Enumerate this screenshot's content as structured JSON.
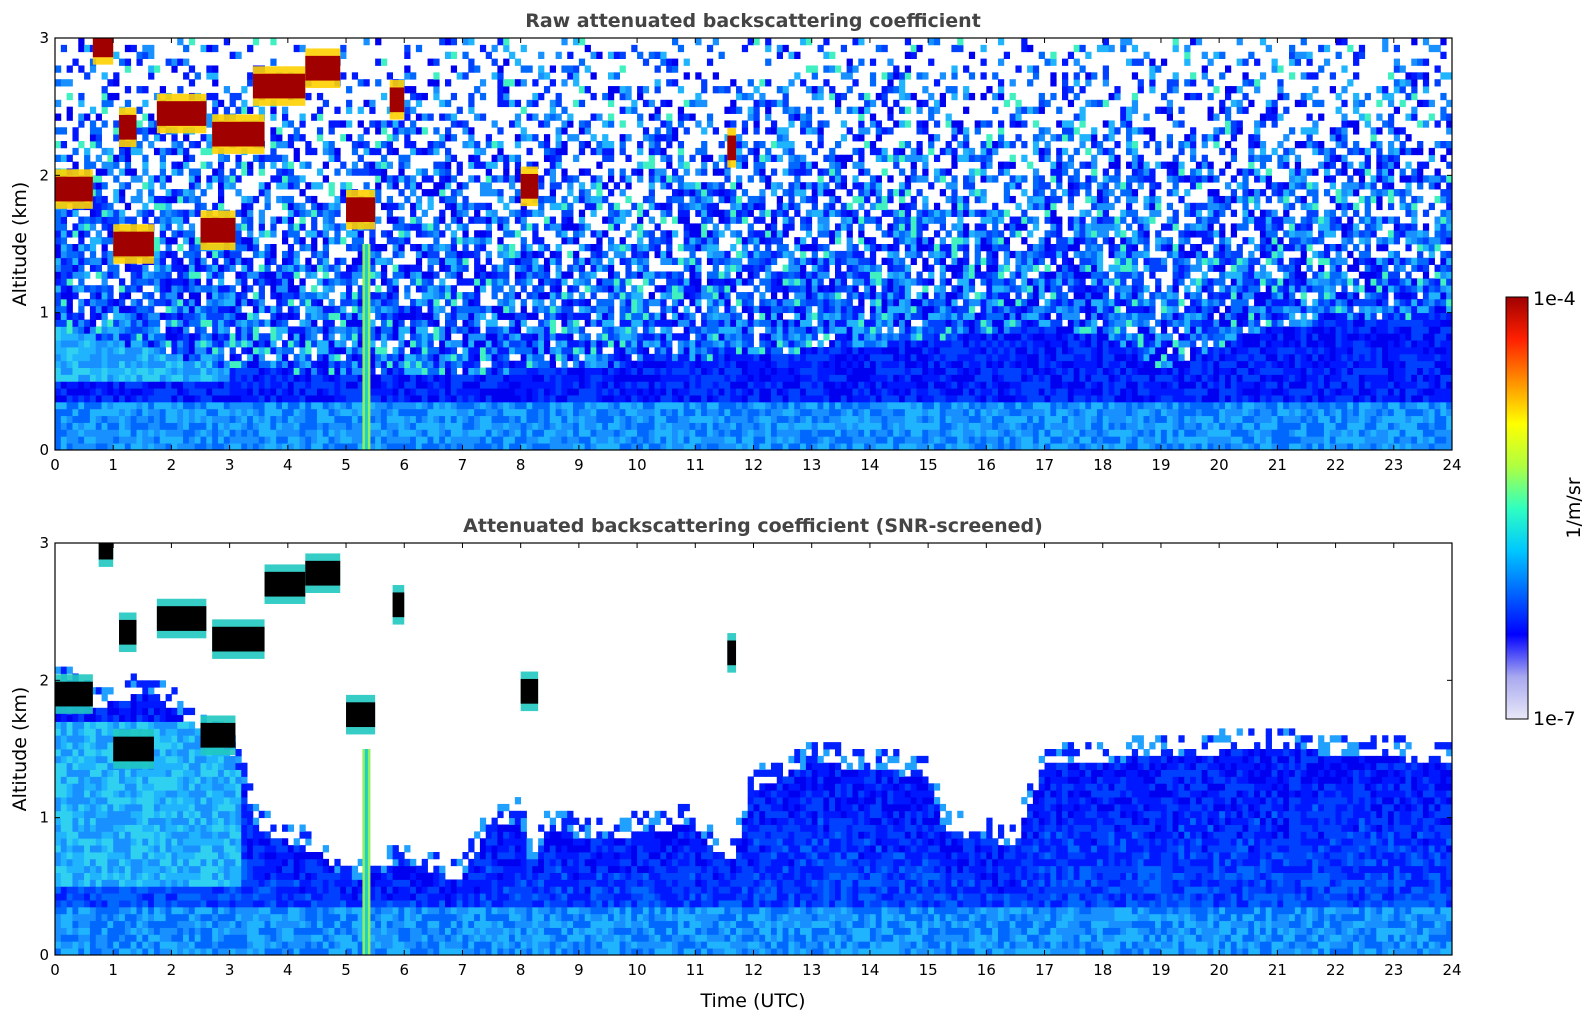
{
  "chart_data": [
    {
      "type": "heatmap",
      "title": "Raw attenuated backscattering coefficient",
      "xlabel": "",
      "ylabel": "Altitude (km)",
      "xlim": [
        0,
        24
      ],
      "ylim": [
        0,
        3
      ],
      "x_ticks": [
        "0",
        "1",
        "2",
        "3",
        "4",
        "5",
        "6",
        "7",
        "8",
        "9",
        "10",
        "11",
        "12",
        "13",
        "14",
        "15",
        "16",
        "17",
        "18",
        "19",
        "20",
        "21",
        "22",
        "23",
        "24"
      ],
      "y_ticks": [
        "0",
        "1",
        "2",
        "3"
      ],
      "screened": false,
      "boundary_layer_top_km": [
        [
          0,
          0.9
        ],
        [
          1.5,
          0.75
        ],
        [
          3,
          0.6
        ],
        [
          5,
          0.55
        ],
        [
          7,
          0.55
        ],
        [
          9,
          0.6
        ],
        [
          12,
          0.7
        ],
        [
          15,
          0.8
        ],
        [
          17,
          0.9
        ],
        [
          18,
          0.85
        ],
        [
          19,
          0.6
        ],
        [
          21,
          0.9
        ],
        [
          24,
          1.0
        ]
      ],
      "cloud_layers": [
        {
          "t_start": 0.0,
          "t_end": 0.65,
          "alt_km": 1.9
        },
        {
          "t_start": 0.65,
          "t_end": 1.0,
          "alt_km": 2.95
        },
        {
          "t_start": 1.1,
          "t_end": 1.4,
          "alt_km": 2.35
        },
        {
          "t_start": 1.0,
          "t_end": 1.7,
          "alt_km": 1.5
        },
        {
          "t_start": 1.75,
          "t_end": 2.6,
          "alt_km": 2.45
        },
        {
          "t_start": 2.5,
          "t_end": 3.1,
          "alt_km": 1.6
        },
        {
          "t_start": 2.7,
          "t_end": 3.6,
          "alt_km": 2.3
        },
        {
          "t_start": 3.4,
          "t_end": 4.3,
          "alt_km": 2.65
        },
        {
          "t_start": 4.3,
          "t_end": 4.9,
          "alt_km": 2.78
        },
        {
          "t_start": 5.0,
          "t_end": 5.5,
          "alt_km": 1.75
        },
        {
          "t_start": 5.75,
          "t_end": 6.0,
          "alt_km": 2.55
        },
        {
          "t_start": 8.0,
          "t_end": 8.3,
          "alt_km": 1.92
        },
        {
          "t_start": 11.55,
          "t_end": 11.7,
          "alt_km": 2.2
        }
      ],
      "precip_columns": [
        {
          "t": 5.35,
          "top_km": 1.5
        }
      ]
    },
    {
      "type": "heatmap",
      "title": "Attenuated backscattering coefficient (SNR-screened)",
      "xlabel": "Time (UTC)",
      "ylabel": "Altitude (km)",
      "xlim": [
        0,
        24
      ],
      "ylim": [
        0,
        3
      ],
      "x_ticks": [
        "0",
        "1",
        "2",
        "3",
        "4",
        "5",
        "6",
        "7",
        "8",
        "9",
        "10",
        "11",
        "12",
        "13",
        "14",
        "15",
        "16",
        "17",
        "18",
        "19",
        "20",
        "21",
        "22",
        "23",
        "24"
      ],
      "y_ticks": [
        "0",
        "1",
        "2",
        "3"
      ],
      "screened": true,
      "signal_top_km": [
        [
          0,
          2.0
        ],
        [
          0.7,
          1.8
        ],
        [
          1.5,
          1.9
        ],
        [
          2.0,
          1.8
        ],
        [
          3.0,
          1.5
        ],
        [
          3.3,
          1.2
        ],
        [
          3.5,
          0.9
        ],
        [
          4.5,
          0.75
        ],
        [
          5.0,
          0.55
        ],
        [
          5.6,
          0.6
        ],
        [
          6.0,
          0.7
        ],
        [
          6.5,
          0.6
        ],
        [
          7.0,
          0.55
        ],
        [
          7.4,
          0.9
        ],
        [
          8.0,
          1.0
        ],
        [
          8.2,
          0.6
        ],
        [
          8.4,
          0.9
        ],
        [
          9.5,
          0.85
        ],
        [
          11.0,
          0.95
        ],
        [
          11.6,
          0.65
        ],
        [
          12.0,
          1.2
        ],
        [
          13.0,
          1.4
        ],
        [
          15.0,
          1.3
        ],
        [
          15.3,
          0.9
        ],
        [
          16.5,
          0.8
        ],
        [
          17.0,
          1.4
        ],
        [
          18.0,
          1.4
        ],
        [
          19.0,
          1.45
        ],
        [
          21.0,
          1.5
        ],
        [
          24.0,
          1.4
        ]
      ],
      "cloud_layers": [
        {
          "t_start": 0.0,
          "t_end": 0.65,
          "alt_km": 1.9
        },
        {
          "t_start": 0.75,
          "t_end": 1.0,
          "alt_km": 2.97
        },
        {
          "t_start": 1.1,
          "t_end": 1.4,
          "alt_km": 2.35
        },
        {
          "t_start": 1.0,
          "t_end": 1.7,
          "alt_km": 1.5
        },
        {
          "t_start": 1.75,
          "t_end": 2.6,
          "alt_km": 2.45
        },
        {
          "t_start": 2.5,
          "t_end": 3.1,
          "alt_km": 1.6
        },
        {
          "t_start": 2.7,
          "t_end": 3.6,
          "alt_km": 2.3
        },
        {
          "t_start": 3.6,
          "t_end": 4.3,
          "alt_km": 2.7
        },
        {
          "t_start": 4.3,
          "t_end": 4.9,
          "alt_km": 2.78
        },
        {
          "t_start": 5.0,
          "t_end": 5.5,
          "alt_km": 1.75
        },
        {
          "t_start": 5.8,
          "t_end": 6.0,
          "alt_km": 2.55
        },
        {
          "t_start": 8.0,
          "t_end": 8.3,
          "alt_km": 1.92
        },
        {
          "t_start": 11.55,
          "t_end": 11.7,
          "alt_km": 2.2
        }
      ],
      "precip_columns": [
        {
          "t": 5.35,
          "top_km": 1.5
        }
      ]
    }
  ],
  "colorbar": {
    "label": "1/m/sr",
    "max_label": "1e-4",
    "min_label": "1e-7",
    "scale": "log",
    "colormap": [
      "#e8e8f8",
      "#a8a8f0",
      "#0000ff",
      "#0066ff",
      "#00c8ff",
      "#30ffc0",
      "#b0ff40",
      "#ffff00",
      "#ff9000",
      "#ff2000",
      "#a00000"
    ]
  }
}
